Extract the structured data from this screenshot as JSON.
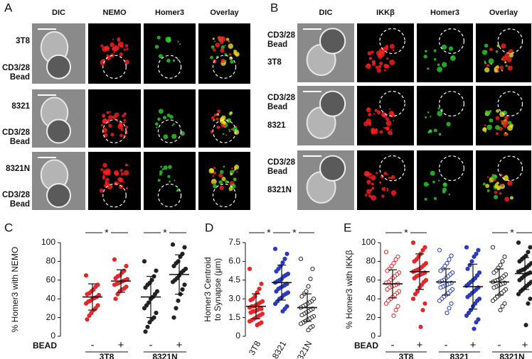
{
  "panels": [
    {
      "label": "A",
      "columns": [
        "DIC",
        "NEMO",
        "Homer3",
        "Overlay"
      ],
      "rows": [
        [
          "3T8",
          "CD3/28 Bead"
        ],
        [
          "8321",
          "CD3/28 Bead"
        ],
        [
          "8321N",
          "CD3/28 Bead"
        ]
      ]
    },
    {
      "label": "B",
      "columns": [
        "DIC",
        "IKKβ",
        "Homer3",
        "Overlay"
      ],
      "rows": [
        [
          "CD3/28 Bead",
          "3T8"
        ],
        [
          "CD3/28 Bead",
          "8321"
        ],
        [
          "CD3/28 Bead",
          "8321N"
        ]
      ]
    }
  ],
  "chart_data": [
    {
      "type": "strip",
      "label": "C",
      "ylabel": [
        "% Homer3 with NEMO"
      ],
      "xlabel": "BEAD",
      "categories": [
        "-",
        "+",
        "-",
        "+"
      ],
      "group_labels": [
        "3T8",
        "8321N"
      ],
      "annotations": [
        "*",
        "*"
      ],
      "ylim": [
        0,
        100
      ],
      "yticks": [
        0,
        20,
        40,
        60,
        80,
        100
      ],
      "series": [
        {
          "color": "#e8262a",
          "filled": true,
          "mean": 42,
          "sd": 14,
          "values": [
            65,
            55,
            53,
            50,
            48,
            46,
            45,
            44,
            42,
            41,
            40,
            38,
            37,
            35,
            33,
            30,
            28,
            25,
            22,
            18
          ]
        },
        {
          "color": "#e8262a",
          "filled": true,
          "mean": 59,
          "sd": 12,
          "values": [
            82,
            75,
            70,
            68,
            65,
            64,
            62,
            61,
            60,
            59,
            58,
            57,
            56,
            55,
            53,
            51,
            50,
            48,
            45,
            40
          ]
        },
        {
          "color": "#222222",
          "filled": true,
          "mean": 42,
          "sd": 22,
          "values": [
            80,
            70,
            64,
            60,
            57,
            55,
            52,
            48,
            45,
            42,
            40,
            36,
            33,
            30,
            25,
            20,
            18,
            15,
            10,
            5
          ]
        },
        {
          "color": "#222222",
          "filled": true,
          "mean": 66,
          "sd": 21,
          "values": [
            98,
            95,
            88,
            85,
            80,
            78,
            75,
            72,
            70,
            68,
            65,
            62,
            60,
            58,
            55,
            50,
            45,
            38,
            30,
            20
          ]
        }
      ]
    },
    {
      "type": "strip",
      "label": "D",
      "ylabel": [
        "Homer3 Centroid",
        "to Synapse (μm)"
      ],
      "categories": [
        "3T8",
        "8321",
        "8321N"
      ],
      "annotations": [
        "*",
        "*"
      ],
      "ylim": [
        0,
        7.5
      ],
      "yticks": [
        0,
        1.5,
        {
          "value": 3,
          "label": "3.0"
        },
        4.5,
        {
          "value": 6,
          "label": "6.0"
        },
        7.5
      ],
      "series": [
        {
          "color": "#e8262a",
          "filled": true,
          "mean": 2.4,
          "sd": 1.0,
          "values": [
            5.4,
            4.2,
            3.8,
            3.5,
            3.2,
            3.0,
            2.9,
            2.8,
            2.7,
            2.6,
            2.5,
            2.4,
            2.4,
            2.3,
            2.2,
            2.2,
            2.1,
            2.0,
            2.0,
            1.9,
            1.8,
            1.7,
            1.6,
            1.5,
            1.4,
            1.3,
            1.2,
            1.1,
            1.0,
            0.9
          ]
        },
        {
          "color": "#2b3bbf",
          "filled": true,
          "mean": 4.3,
          "sd": 1.4,
          "values": [
            7.0,
            6.6,
            6.2,
            5.9,
            5.6,
            5.4,
            5.2,
            5.0,
            4.9,
            4.8,
            4.6,
            4.5,
            4.4,
            4.3,
            4.2,
            4.1,
            4.0,
            3.9,
            3.8,
            3.6,
            3.5,
            3.4,
            3.3,
            3.1,
            3.0,
            2.8,
            2.6,
            2.4,
            2.2,
            2.0
          ]
        },
        {
          "color": "#222222",
          "filled": false,
          "mean": 2.3,
          "sd": 1.1,
          "values": [
            6.2,
            5.4,
            4.6,
            4.0,
            3.6,
            3.4,
            3.2,
            3.0,
            2.8,
            2.7,
            2.6,
            2.5,
            2.4,
            2.3,
            2.2,
            2.1,
            2.0,
            1.9,
            1.8,
            1.7,
            1.6,
            1.5,
            1.4,
            1.3,
            1.2,
            1.1,
            1.0,
            0.8,
            0.7,
            0.5
          ]
        }
      ]
    },
    {
      "type": "strip",
      "label": "E",
      "ylabel": [
        "% Homer3 with IKKβ"
      ],
      "xlabel": "BEAD",
      "categories": [
        "-",
        "+",
        "-",
        "+",
        "-",
        "+"
      ],
      "group_labels": [
        "3T8",
        "8321",
        "8321N"
      ],
      "annotations": [
        "*",
        "*"
      ],
      "ylim": [
        0,
        100
      ],
      "yticks": [
        0,
        20,
        40,
        60,
        80,
        100
      ],
      "series": [
        {
          "color": "#e8262a",
          "filled": false,
          "mean": 56,
          "sd": 15,
          "values": [
            90,
            85,
            82,
            78,
            75,
            72,
            70,
            68,
            66,
            64,
            62,
            60,
            58,
            57,
            56,
            55,
            54,
            53,
            52,
            50,
            48,
            46,
            44,
            42,
            40,
            38,
            35,
            32,
            28,
            22
          ]
        },
        {
          "color": "#e8262a",
          "filled": true,
          "mean": 69,
          "sd": 19,
          "values": [
            100,
            95,
            92,
            88,
            85,
            82,
            80,
            78,
            76,
            74,
            72,
            71,
            70,
            69,
            68,
            67,
            66,
            65,
            64,
            62,
            60,
            58,
            55,
            52,
            48,
            45,
            40,
            35,
            28,
            10
          ]
        },
        {
          "color": "#2b3bbf",
          "filled": false,
          "mean": 58,
          "sd": 14,
          "values": [
            92,
            86,
            82,
            78,
            75,
            72,
            70,
            68,
            66,
            64,
            62,
            60,
            59,
            58,
            57,
            56,
            55,
            54,
            53,
            52,
            50,
            48,
            46,
            44,
            42,
            40,
            38,
            35,
            30,
            25
          ]
        },
        {
          "color": "#2b3bbf",
          "filled": true,
          "mean": 53,
          "sd": 24,
          "values": [
            95,
            92,
            88,
            85,
            80,
            76,
            72,
            68,
            65,
            62,
            60,
            58,
            56,
            54,
            52,
            50,
            48,
            46,
            44,
            42,
            40,
            38,
            35,
            32,
            28,
            25,
            22,
            18,
            15,
            8
          ]
        },
        {
          "color": "#222222",
          "filled": false,
          "mean": 58,
          "sd": 14,
          "values": [
            95,
            85,
            80,
            76,
            73,
            70,
            68,
            66,
            64,
            62,
            61,
            60,
            59,
            58,
            57,
            56,
            55,
            54,
            53,
            52,
            50,
            48,
            46,
            44,
            42,
            40,
            38,
            35,
            32,
            28
          ]
        },
        {
          "color": "#222222",
          "filled": true,
          "mean": 67,
          "sd": 17,
          "values": [
            100,
            95,
            90,
            86,
            84,
            82,
            80,
            78,
            76,
            74,
            72,
            71,
            70,
            69,
            68,
            67,
            66,
            64,
            62,
            60,
            58,
            56,
            54,
            52,
            50,
            48,
            45,
            40,
            35,
            12
          ]
        }
      ]
    }
  ]
}
